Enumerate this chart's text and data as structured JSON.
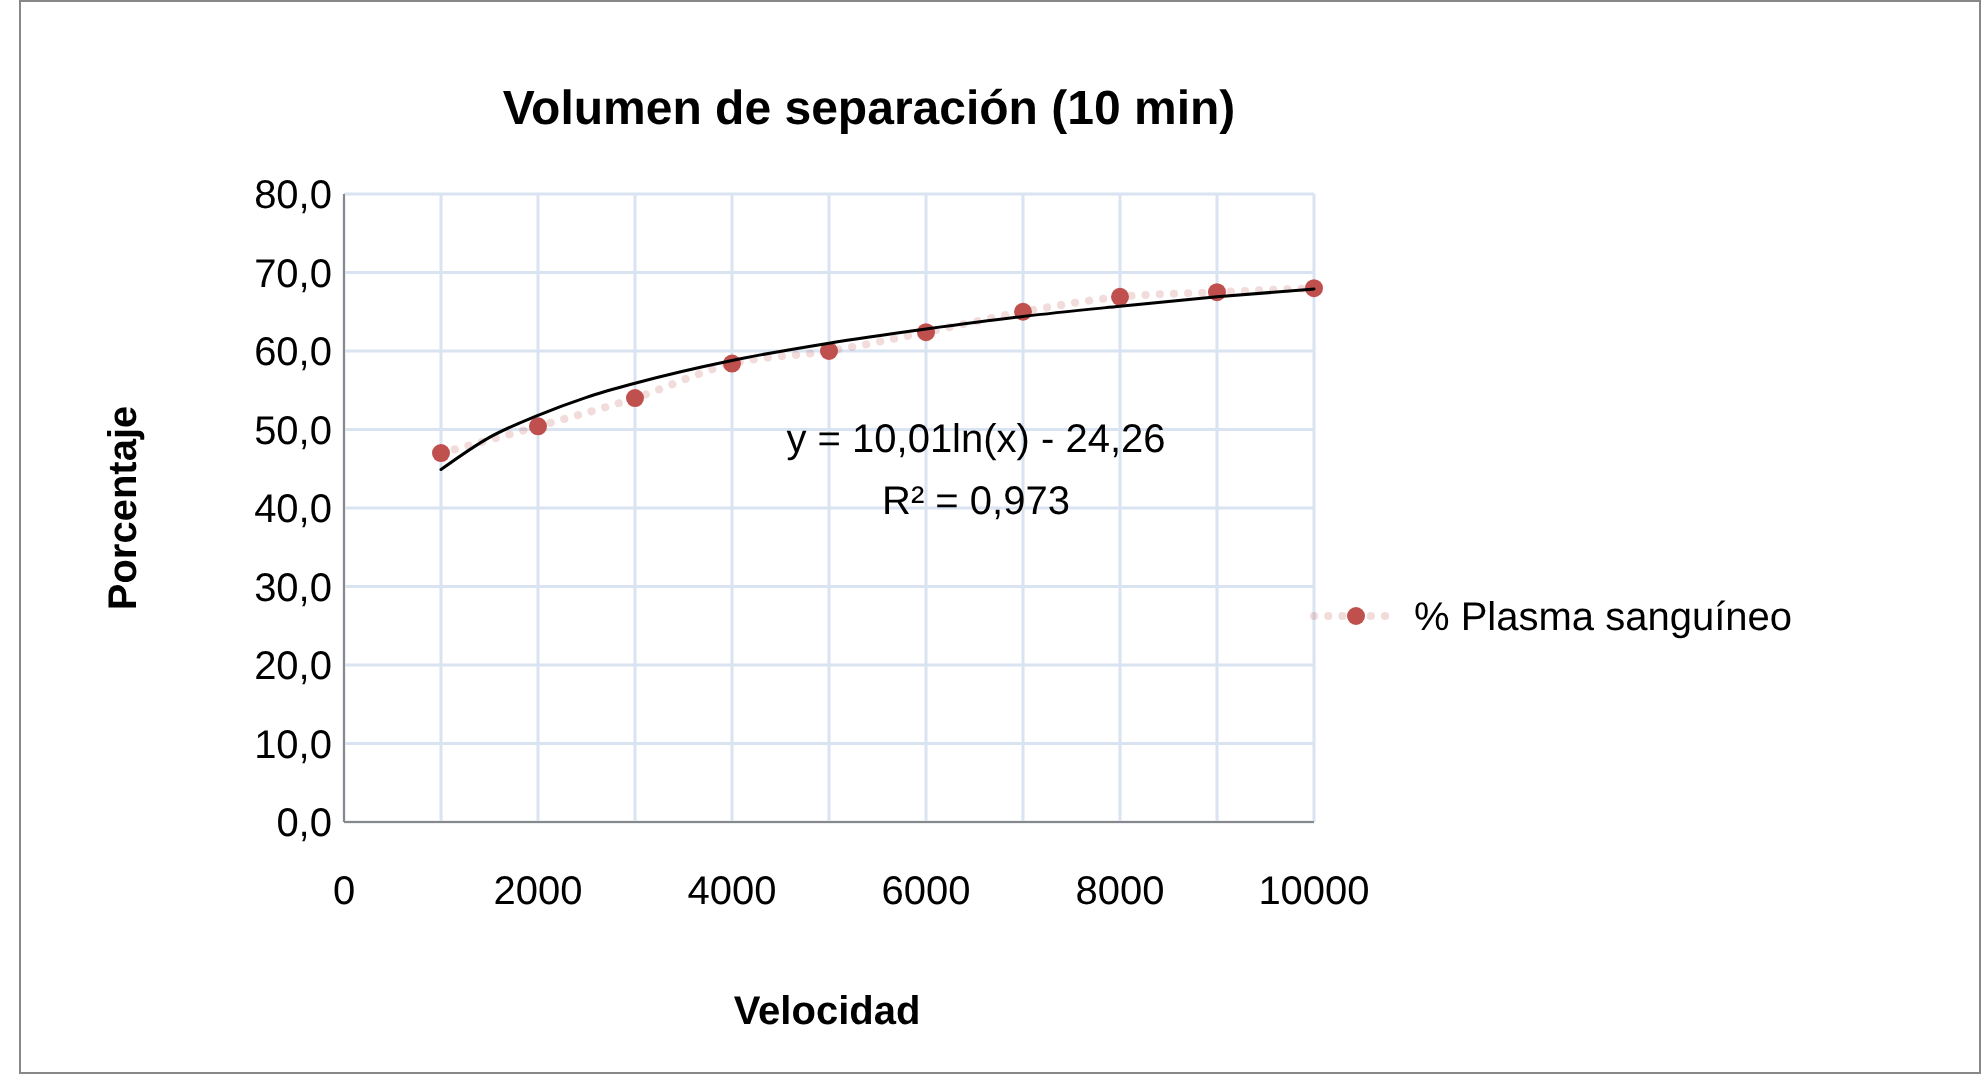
{
  "chart_data": {
    "type": "line",
    "title": "Volumen de separación (10 min)",
    "xlabel": "Velocidad",
    "ylabel": "Porcentaje",
    "x": [
      1000,
      2000,
      3000,
      4000,
      5000,
      6000,
      7000,
      8000,
      9000,
      10000
    ],
    "series": [
      {
        "name": "% Plasma sanguíneo",
        "color": "#c0504d",
        "values": [
          47.0,
          50.4,
          54.0,
          58.4,
          60.0,
          62.4,
          65.0,
          66.9,
          67.5,
          68.0
        ],
        "marker": "circle",
        "line_style": "dotted"
      },
      {
        "type": "line",
        "color": "#000000",
        "x": [
          1000,
          1500,
          2000,
          2500,
          3000,
          4000,
          5000,
          6000,
          7000,
          8000,
          9000,
          10000
        ],
        "values": [
          44.9,
          49.0,
          51.8,
          54.1,
          55.9,
          58.8,
          61.0,
          62.8,
          64.4,
          65.7,
          66.9,
          67.9
        ],
        "marker": "none",
        "line_style": "solid"
      }
    ],
    "xlim": [
      0,
      10000
    ],
    "xticks": [
      0,
      2000,
      4000,
      6000,
      8000,
      10000
    ],
    "ylim": [
      0,
      80
    ],
    "yticks": [
      {
        "value": 0,
        "label": "0,0"
      },
      {
        "value": 10,
        "label": "10,0"
      },
      {
        "value": 20,
        "label": "20,0"
      },
      {
        "value": 30,
        "label": "30,0"
      },
      {
        "value": 40,
        "label": "40,0"
      },
      {
        "value": 50,
        "label": "50,0"
      },
      {
        "value": 60,
        "label": "60,0"
      },
      {
        "value": 70,
        "label": "70,0"
      },
      {
        "value": 80,
        "label": "80,0"
      }
    ],
    "grid": true,
    "legend": "right",
    "annotations": [
      "y = 10,01ln(x) - 24,26",
      "R² = 0,973"
    ]
  }
}
